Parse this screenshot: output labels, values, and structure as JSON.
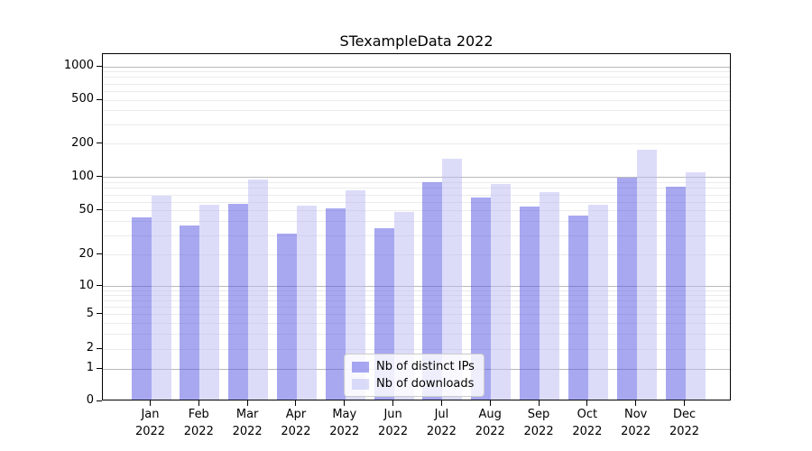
{
  "chart_data": {
    "type": "bar",
    "title": "STexampleData 2022",
    "categories": [
      "Jan",
      "Feb",
      "Mar",
      "Apr",
      "May",
      "Jun",
      "Jul",
      "Aug",
      "Sep",
      "Oct",
      "Nov",
      "Dec"
    ],
    "x_year": "2022",
    "series": [
      {
        "name": "Nb of distinct IPs",
        "color": "rgba(81,81,227,0.5)",
        "values": [
          42,
          36,
          56,
          30,
          51,
          34,
          88,
          64,
          53,
          44,
          97,
          80
        ]
      },
      {
        "name": "Nb of downloads",
        "color": "rgba(185,185,243,0.5)",
        "values": [
          66,
          55,
          93,
          54,
          74,
          47,
          142,
          85,
          72,
          55,
          172,
          108
        ]
      }
    ],
    "yscale": "symlog-like",
    "yticks": {
      "values": [
        0,
        1,
        2,
        5,
        10,
        20,
        50,
        100,
        200,
        500,
        1000
      ],
      "labels": [
        "0",
        "1",
        "2",
        "5",
        "10",
        "20",
        "50",
        "100",
        "200",
        "500",
        "1000"
      ],
      "fractions": [
        0,
        0.0935,
        0.1506,
        0.2494,
        0.3299,
        0.4208,
        0.5481,
        0.6442,
        0.7403,
        0.8675,
        0.9636
      ]
    },
    "major_gridlines": [
      1,
      10,
      100,
      1000
    ],
    "minor_gridlines": [
      2,
      3,
      4,
      5,
      6,
      7,
      8,
      9,
      20,
      30,
      40,
      50,
      60,
      70,
      80,
      90,
      200,
      300,
      400,
      500,
      600,
      700,
      800,
      900
    ],
    "grid": true,
    "legend_position": "inside lower-center",
    "colors": {
      "axis": "#000000",
      "major_grid": "#b9b9b9",
      "minor_grid": "#ebebeb"
    }
  }
}
